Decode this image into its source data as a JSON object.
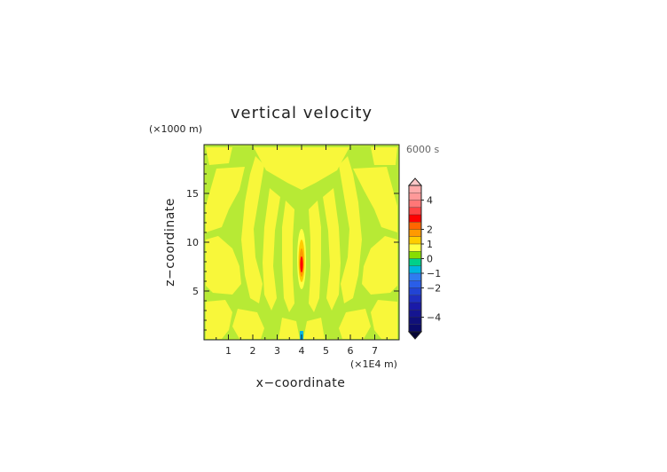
{
  "chart_data": {
    "type": "heatmap",
    "title": "vertical velocity",
    "xlabel": "x−coordinate",
    "ylabel": "z−coordinate",
    "x_unit": "(×1E4 m)",
    "y_unit": "(×1000 m)",
    "time_label": "6000 s",
    "xlim": [
      0,
      8
    ],
    "ylim": [
      0,
      20
    ],
    "x_ticks": [
      "1",
      "2",
      "3",
      "4",
      "5",
      "6",
      "7"
    ],
    "y_ticks": [
      "5",
      "10",
      "15"
    ],
    "x_tick_values": [
      1,
      2,
      3,
      4,
      5,
      6,
      7
    ],
    "y_tick_values": [
      5,
      10,
      15
    ],
    "colorbar": {
      "levels": [
        -5,
        -4.5,
        -4,
        -3.5,
        -3,
        -2.5,
        -2,
        -1.5,
        -1,
        -0.5,
        0,
        0.5,
        1,
        1.5,
        2,
        2.5,
        3,
        3.5,
        4,
        4.5,
        5
      ],
      "colors": [
        "#0b0b6b",
        "#10107a",
        "#151590",
        "#1a1aa8",
        "#1f2fc0",
        "#2244d4",
        "#2a5ee8",
        "#2f7cf0",
        "#00b4e0",
        "#00d08a",
        "#88dd00",
        "#ffff44",
        "#ffcc00",
        "#ff9900",
        "#ff6600",
        "#ff0000",
        "#ff4444",
        "#ff7777",
        "#ff9999",
        "#ffaaaa"
      ],
      "extend": "both",
      "tick_labels": [
        "4",
        "2",
        "1",
        "0",
        "−1",
        "−2",
        "−4"
      ],
      "tick_values": [
        4,
        2,
        1,
        0,
        -1,
        -2,
        -4
      ]
    },
    "dominant_values": "mostly between -0.5 and 0.5 (yellow-green and yellow bands)",
    "features": [
      {
        "name": "central updraft",
        "x": 4.0,
        "z_range": [
          5.5,
          10.5
        ],
        "peak": 2.5
      },
      {
        "name": "surface downdraft",
        "x": 4.0,
        "z_range": [
          0,
          0.8
        ],
        "value": -0.8
      }
    ]
  }
}
